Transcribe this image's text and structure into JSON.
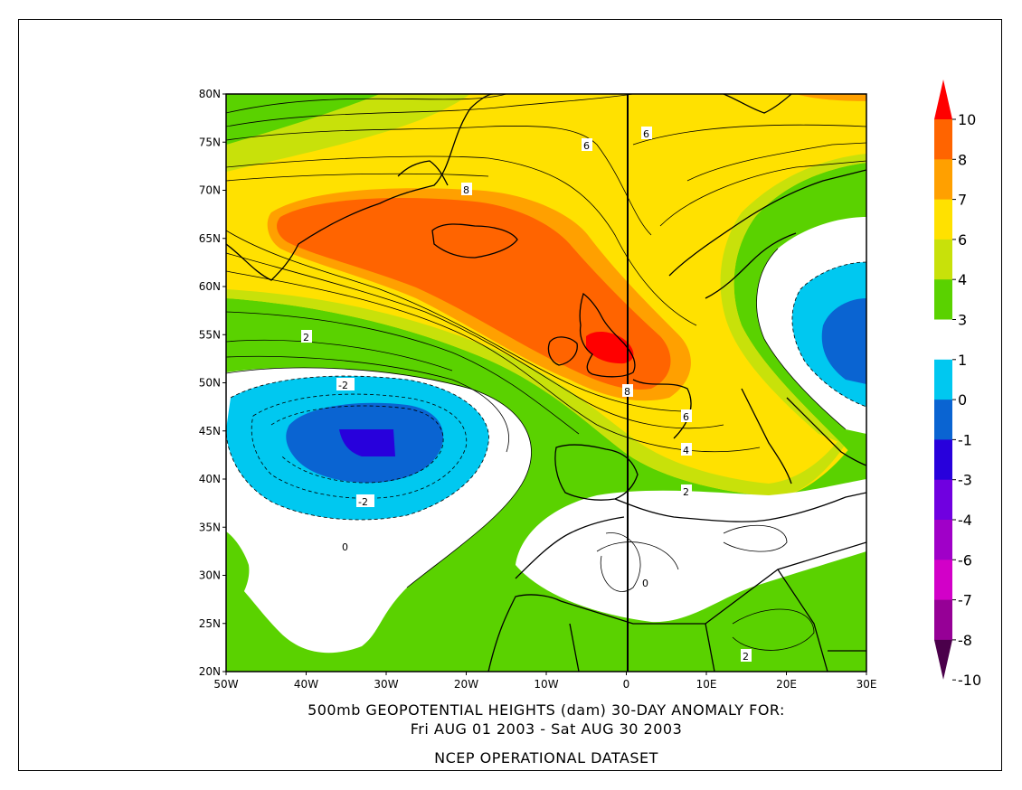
{
  "title": {
    "line1": "500mb GEOPOTENTIAL HEIGHTS (dam)   30-DAY ANOMALY FOR:",
    "line2": "Fri AUG 01 2003 - Sat AUG 30 2003",
    "line3": "NCEP OPERATIONAL DATASET"
  },
  "axes": {
    "lat_labels": [
      "80N",
      "75N",
      "70N",
      "65N",
      "60N",
      "55N",
      "50N",
      "45N",
      "40N",
      "35N",
      "30N",
      "25N",
      "20N"
    ],
    "lon_labels": [
      "50W",
      "40W",
      "30W",
      "20W",
      "10W",
      "0",
      "10E",
      "20E",
      "30E"
    ],
    "lat_range": [
      20,
      80
    ],
    "lon_range": [
      -50,
      30
    ]
  },
  "colorbar": {
    "labels": [
      "10",
      "8",
      "7",
      "6",
      "4",
      "3",
      "1",
      "0",
      "-1",
      "-3",
      "-4",
      "-6",
      "-7",
      "-8",
      "-10"
    ],
    "colors": [
      "#ff0000",
      "#ff6400",
      "#ffa000",
      "#ffe100",
      "#c8e10a",
      "#5ad200",
      "#ffffff",
      "#00c8f0",
      "#0a64d2",
      "#2800dc",
      "#7000e0",
      "#a000c8",
      "#d200c8",
      "#960096",
      "#4b004b"
    ]
  },
  "contour_labels": [
    "6",
    "6",
    "8",
    "8",
    "2",
    "-2",
    "-2",
    "0",
    "6",
    "4",
    "2",
    "0",
    "2"
  ],
  "fill_colors": {
    "positive_1_3": "#5ad200",
    "positive_3_4": "#c8e10a",
    "positive_4_6": "#ffe100",
    "positive_6_7": "#ffa000",
    "positive_7_8": "#ff6400",
    "positive_8_10": "#ff0000",
    "near_zero": "#ffffff",
    "negative_1_3": "#00c8f0",
    "negative_3_4": "#0a64d2",
    "negative_4_6": "#2800dc"
  }
}
